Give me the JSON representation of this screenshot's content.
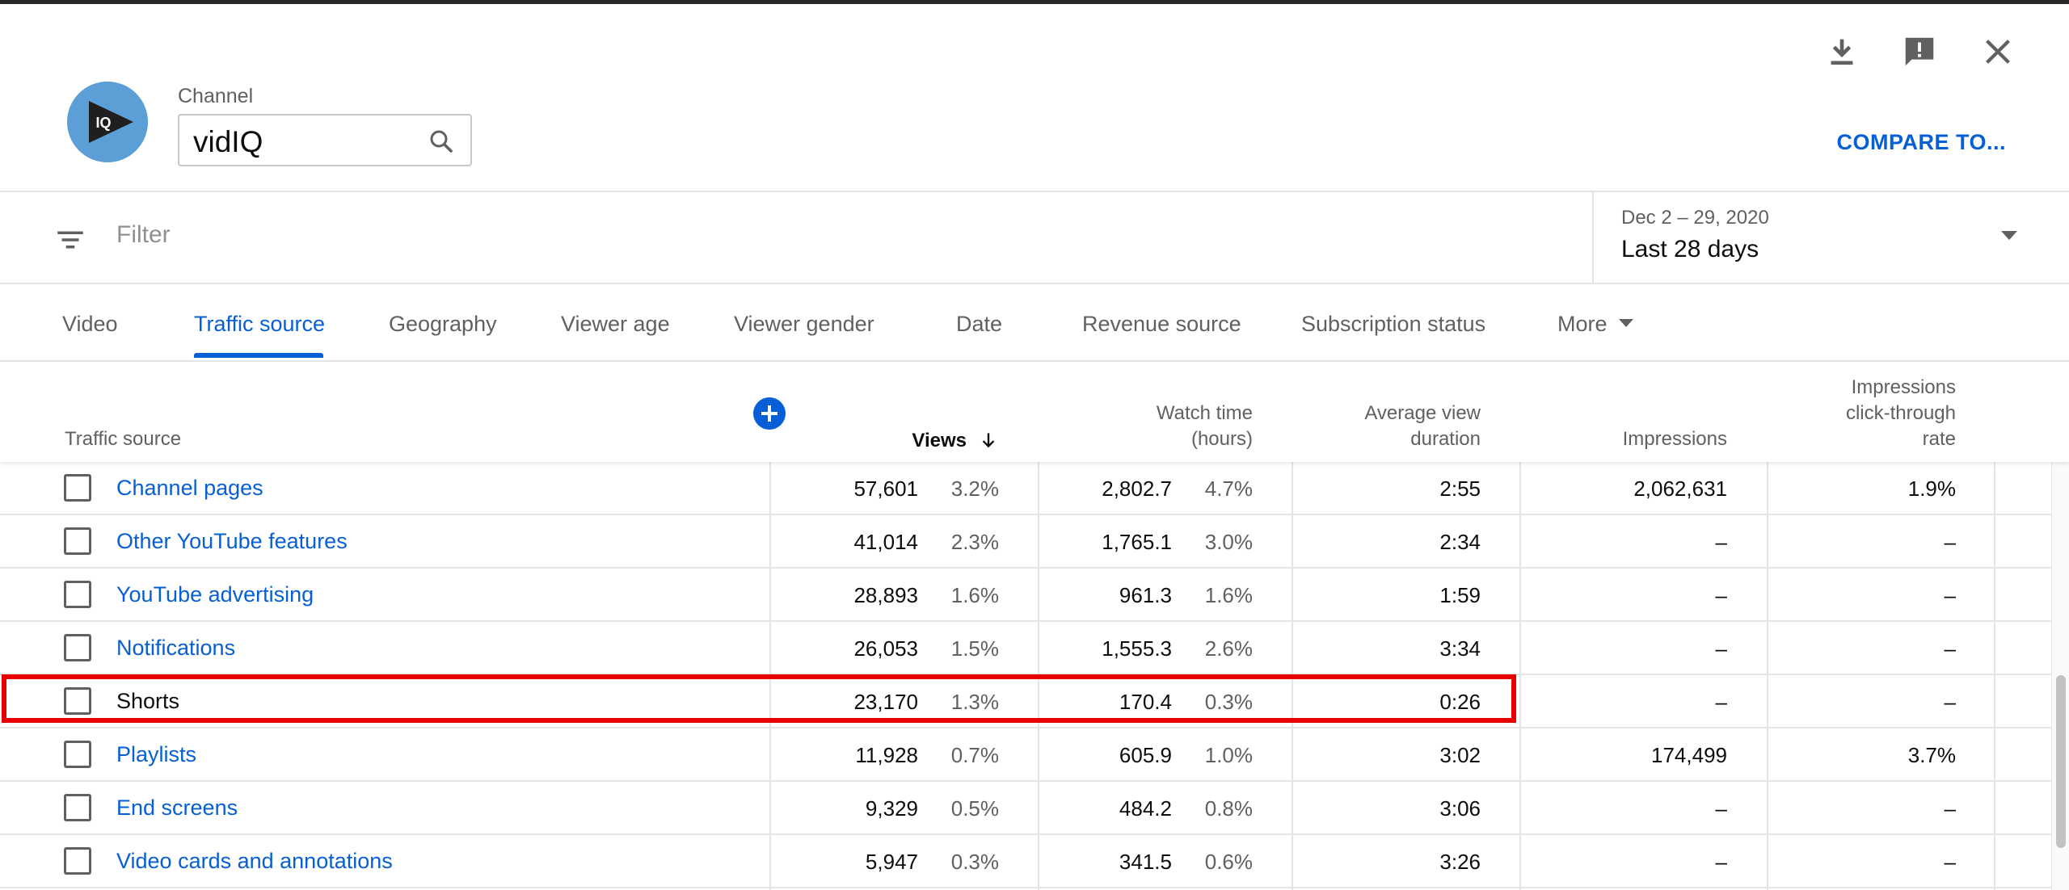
{
  "header": {
    "channel_label": "Channel",
    "channel_value": "vidIQ",
    "avatar_text": "IQ",
    "compare_label": "COMPARE TO...",
    "icons": [
      "download-icon",
      "feedback-icon",
      "close-icon"
    ]
  },
  "filter": {
    "placeholder": "Filter",
    "date_range": "Dec 2 – 29, 2020",
    "period": "Last 28 days"
  },
  "tabs": [
    {
      "label": "Video"
    },
    {
      "label": "Traffic source",
      "active": true
    },
    {
      "label": "Geography"
    },
    {
      "label": "Viewer age"
    },
    {
      "label": "Viewer gender"
    },
    {
      "label": "Date"
    },
    {
      "label": "Revenue source"
    },
    {
      "label": "Subscription status"
    },
    {
      "label": "More"
    }
  ],
  "table": {
    "columns": {
      "source": "Traffic source",
      "views": "Views",
      "watch_time_1": "Watch time",
      "watch_time_2": "(hours)",
      "avd_1": "Average view",
      "avd_2": "duration",
      "impressions": "Impressions",
      "ctr_1": "Impressions",
      "ctr_2": "click-through",
      "ctr_3": "rate"
    },
    "rows": [
      {
        "source": "Channel pages",
        "views": "57,601",
        "views_pct": "3.2%",
        "watch": "2,802.7",
        "watch_pct": "4.7%",
        "avd": "2:55",
        "impressions": "2,062,631",
        "ctr": "1.9%"
      },
      {
        "source": "Other YouTube features",
        "views": "41,014",
        "views_pct": "2.3%",
        "watch": "1,765.1",
        "watch_pct": "3.0%",
        "avd": "2:34",
        "impressions": "–",
        "ctr": "–"
      },
      {
        "source": "YouTube advertising",
        "views": "28,893",
        "views_pct": "1.6%",
        "watch": "961.3",
        "watch_pct": "1.6%",
        "avd": "1:59",
        "impressions": "–",
        "ctr": "–"
      },
      {
        "source": "Notifications",
        "views": "26,053",
        "views_pct": "1.5%",
        "watch": "1,555.3",
        "watch_pct": "2.6%",
        "avd": "3:34",
        "impressions": "–",
        "ctr": "–"
      },
      {
        "source": "Shorts",
        "views": "23,170",
        "views_pct": "1.3%",
        "watch": "170.4",
        "watch_pct": "0.3%",
        "avd": "0:26",
        "impressions": "–",
        "ctr": "–"
      },
      {
        "source": "Playlists",
        "views": "11,928",
        "views_pct": "0.7%",
        "watch": "605.9",
        "watch_pct": "1.0%",
        "avd": "3:02",
        "impressions": "174,499",
        "ctr": "3.7%"
      },
      {
        "source": "End screens",
        "views": "9,329",
        "views_pct": "0.5%",
        "watch": "484.2",
        "watch_pct": "0.8%",
        "avd": "3:06",
        "impressions": "–",
        "ctr": "–"
      },
      {
        "source": "Video cards and annotations",
        "views": "5,947",
        "views_pct": "0.3%",
        "watch": "341.5",
        "watch_pct": "0.6%",
        "avd": "3:26",
        "impressions": "–",
        "ctr": "–"
      }
    ]
  },
  "colors": {
    "accent": "#065fd4",
    "highlight": "#e60000",
    "avatar_bg": "#5c9fd6"
  }
}
